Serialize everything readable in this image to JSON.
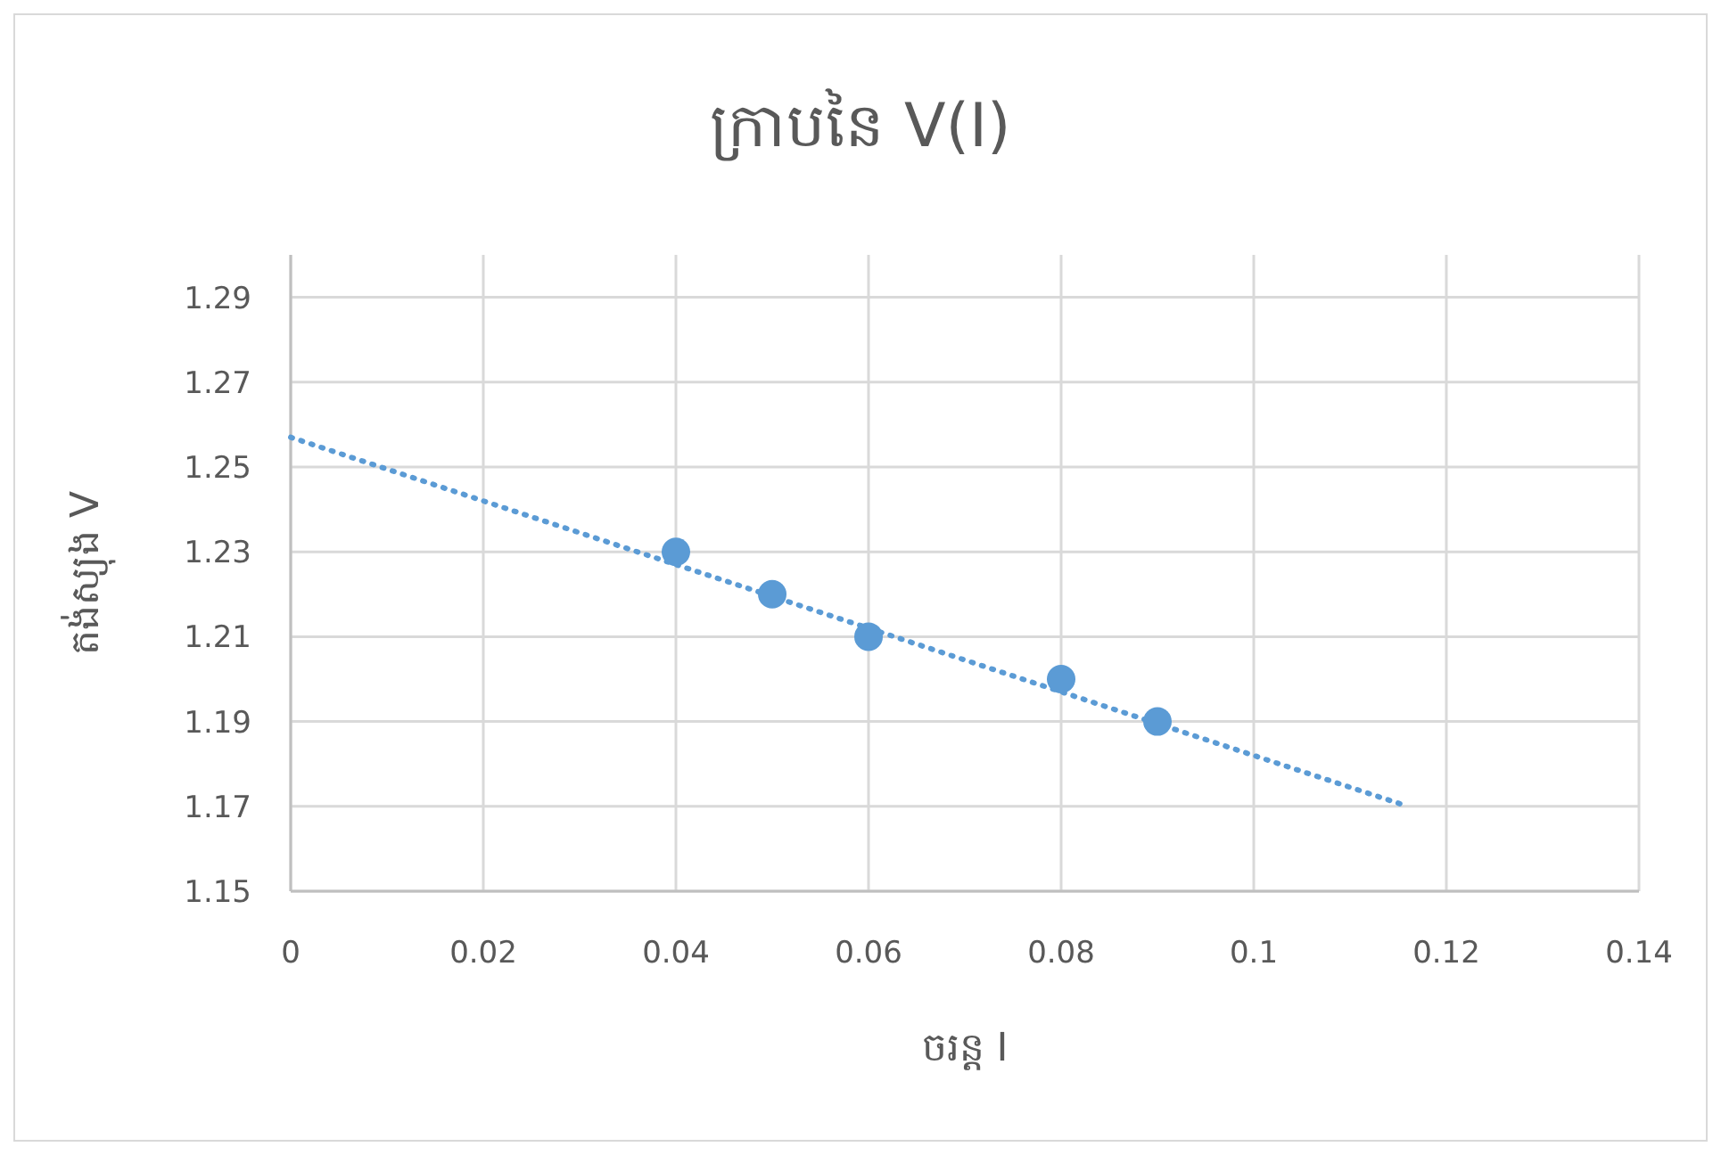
{
  "chart_data": {
    "type": "scatter",
    "title": "ក្រាបនៃ V(I)",
    "xlabel": "ចរន្ត I",
    "ylabel": "តង់ស្យុង V",
    "xlim": [
      0,
      0.14
    ],
    "xticks": [
      0,
      0.02,
      0.04,
      0.06,
      0.08,
      0.1,
      0.12,
      0.14
    ],
    "ylim": [
      1.15,
      1.3
    ],
    "yticks": [
      1.15,
      1.17,
      1.19,
      1.21,
      1.23,
      1.25,
      1.27,
      1.29
    ],
    "grid": true,
    "series": [
      {
        "marker": "circle",
        "color": "#5b9bd5",
        "x": [
          0.04,
          0.05,
          0.06,
          0.08,
          0.09
        ],
        "values": [
          1.23,
          1.22,
          1.21,
          1.2,
          1.19
        ]
      },
      {
        "type": "line",
        "marker": "none",
        "color": "#5b9bd5",
        "line_style": "dotted",
        "x": [
          0,
          0.116
        ],
        "values": [
          1.257,
          1.17
        ]
      }
    ]
  }
}
